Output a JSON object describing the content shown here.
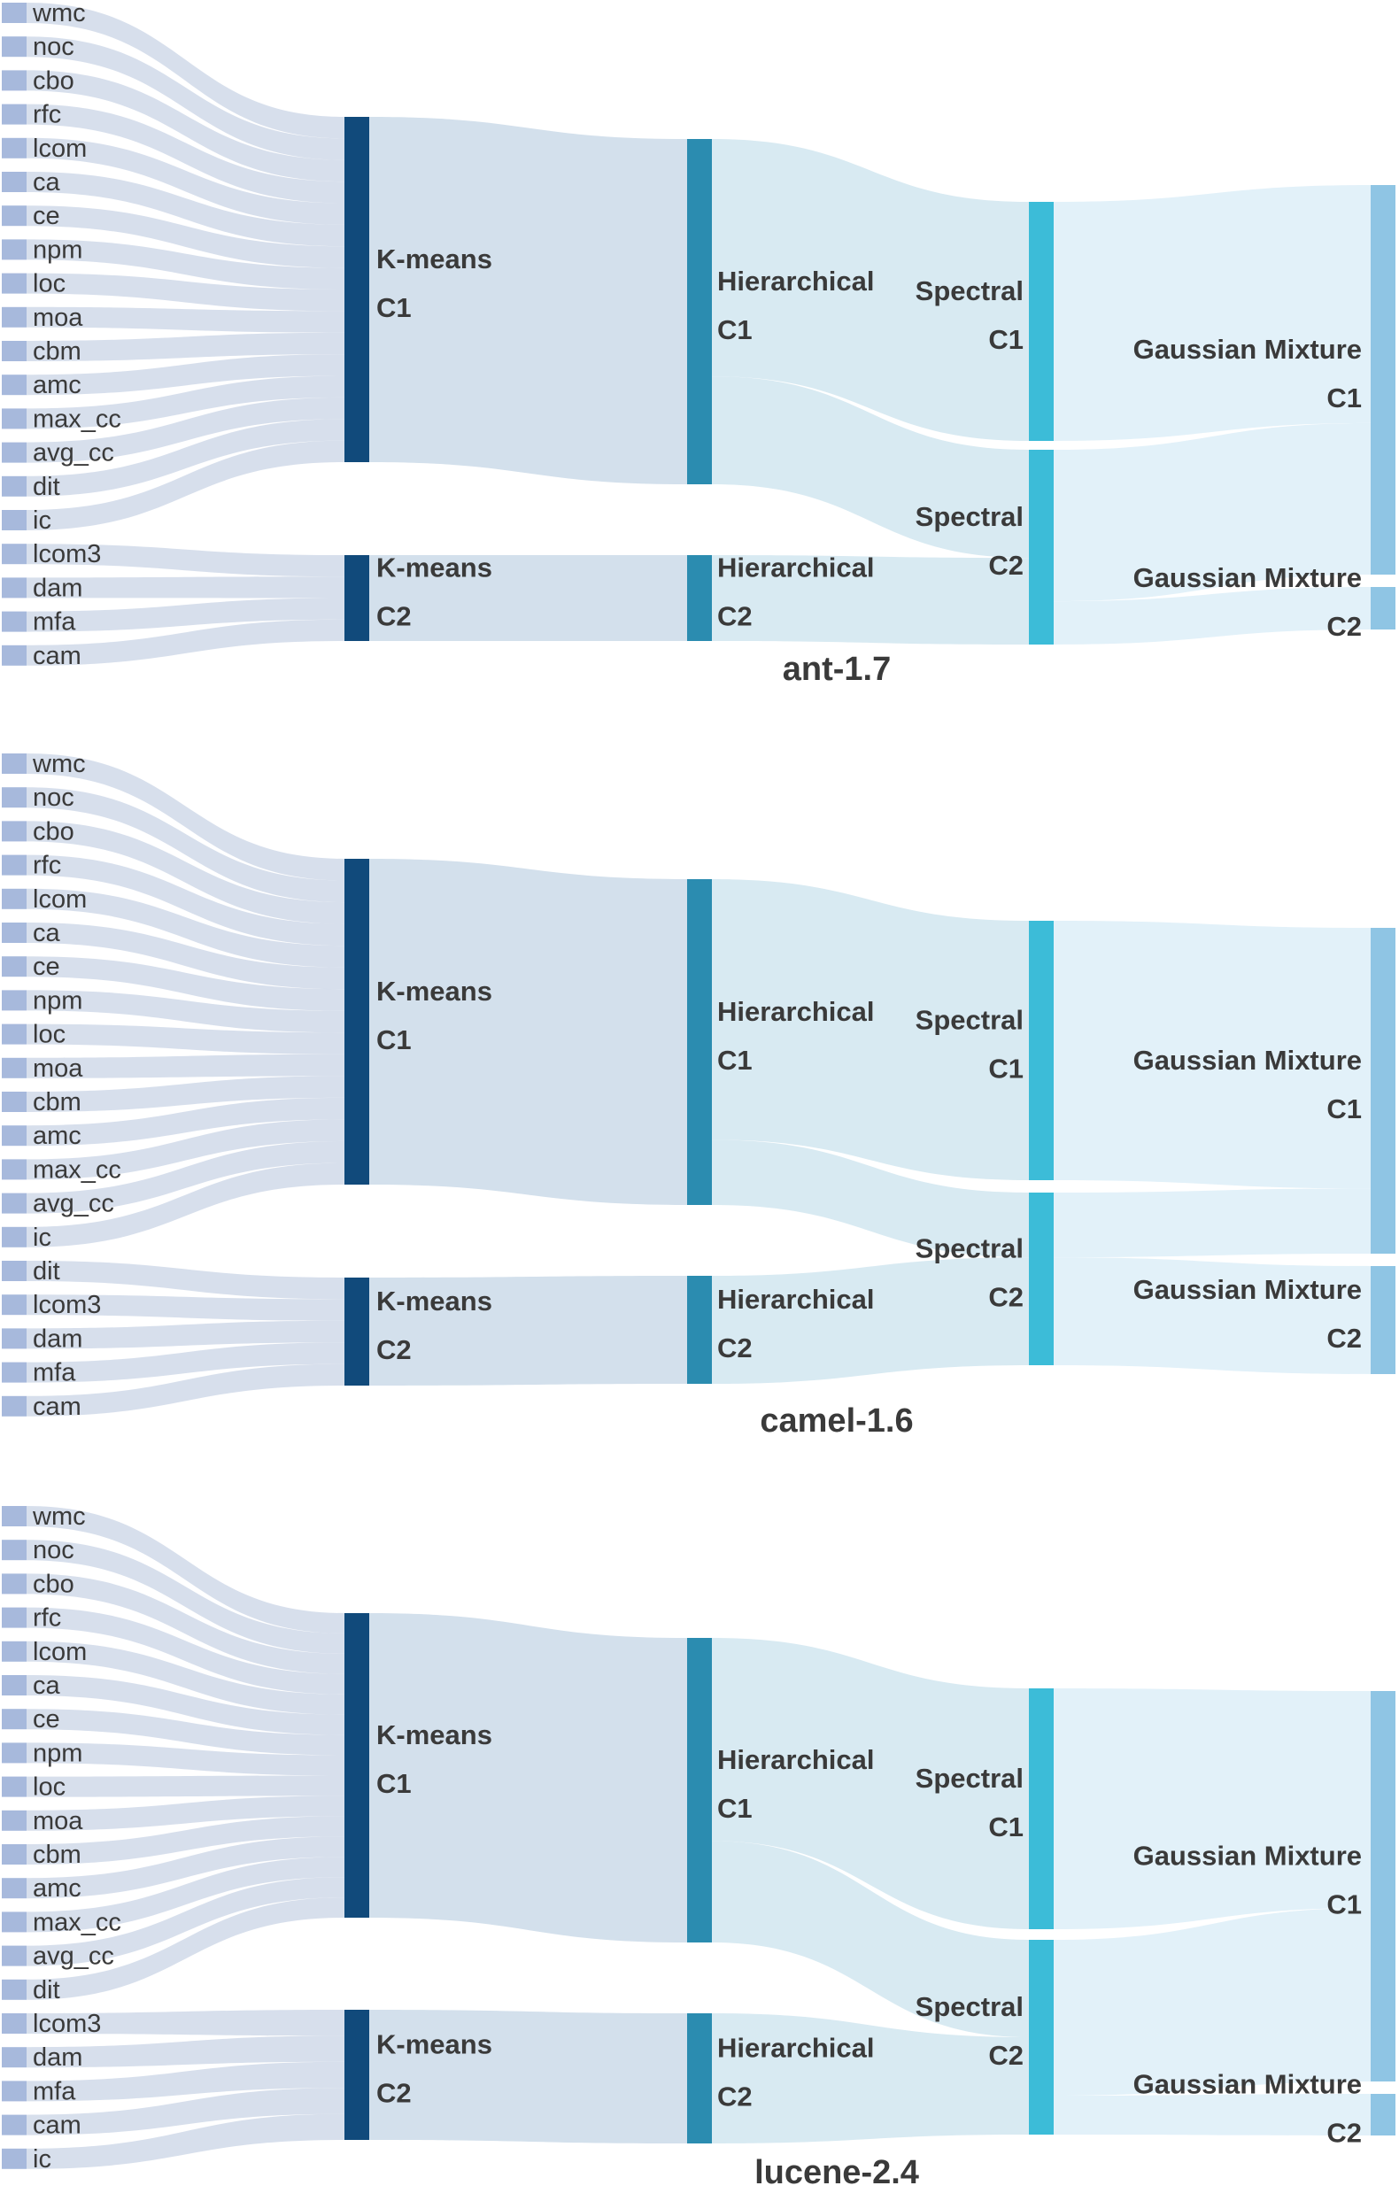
{
  "colors": {
    "metric": "#a7b9dc",
    "kmeans": "#114a7b",
    "hierarchical": "#2b8cb0",
    "spectral": "#3cbcd8",
    "gaussian": "#8fc5e4",
    "flow_metric": "#c9d4e6",
    "flow_kmeans": "#d3e0ec",
    "flow_hier": "#d8eaf2",
    "flow_spectral": "#e2f1f9"
  },
  "chart_data": [
    {
      "type": "sankey",
      "title": "ant-1.7",
      "metrics_c1": [
        "wmc",
        "noc",
        "cbo",
        "rfc",
        "lcom",
        "ca",
        "ce",
        "npm",
        "loc",
        "moa",
        "cbm",
        "amc",
        "max_cc",
        "avg_cc",
        "dit",
        "ic"
      ],
      "metrics_c2": [
        "lcom3",
        "dam",
        "mfa",
        "cam"
      ],
      "nodes": {
        "kmeans": [
          {
            "name": "K-means",
            "cluster": "C1",
            "value": 16
          },
          {
            "name": "K-means",
            "cluster": "C2",
            "value": 4
          }
        ],
        "hierarchical": [
          {
            "name": "Hierarchical",
            "cluster": "C1",
            "value": 16
          },
          {
            "name": "Hierarchical",
            "cluster": "C2",
            "value": 4
          }
        ],
        "spectral": [
          {
            "name": "Spectral",
            "cluster": "C1",
            "value": 11
          },
          {
            "name": "Spectral",
            "cluster": "C2",
            "value": 9
          }
        ],
        "gaussian": [
          {
            "name": "Gaussian Mixture",
            "cluster": "C1",
            "value": 18
          },
          {
            "name": "Gaussian Mixture",
            "cluster": "C2",
            "value": 2
          }
        ]
      },
      "links": {
        "hier_to_spectral": [
          [
            11,
            5
          ],
          [
            0,
            4
          ]
        ],
        "spectral_to_gaussian": [
          [
            11,
            0
          ],
          [
            7,
            2
          ]
        ]
      }
    },
    {
      "type": "sankey",
      "title": "camel-1.6",
      "metrics_c1": [
        "wmc",
        "noc",
        "cbo",
        "rfc",
        "lcom",
        "ca",
        "ce",
        "npm",
        "loc",
        "moa",
        "cbm",
        "amc",
        "max_cc",
        "avg_cc",
        "ic"
      ],
      "metrics_c2": [
        "dit",
        "lcom3",
        "dam",
        "mfa",
        "cam"
      ],
      "nodes": {
        "kmeans": [
          {
            "name": "K-means",
            "cluster": "C1",
            "value": 15
          },
          {
            "name": "K-means",
            "cluster": "C2",
            "value": 5
          }
        ],
        "hierarchical": [
          {
            "name": "Hierarchical",
            "cluster": "C1",
            "value": 15
          },
          {
            "name": "Hierarchical",
            "cluster": "C2",
            "value": 5
          }
        ],
        "spectral": [
          {
            "name": "Spectral",
            "cluster": "C1",
            "value": 12
          },
          {
            "name": "Spectral",
            "cluster": "C2",
            "value": 8
          }
        ],
        "gaussian": [
          {
            "name": "Gaussian Mixture",
            "cluster": "C1",
            "value": 15
          },
          {
            "name": "Gaussian Mixture",
            "cluster": "C2",
            "value": 5
          }
        ]
      },
      "links": {
        "hier_to_spectral": [
          [
            12,
            3
          ],
          [
            0,
            5
          ]
        ],
        "spectral_to_gaussian": [
          [
            12,
            0
          ],
          [
            3,
            5
          ]
        ]
      }
    },
    {
      "type": "sankey",
      "title": "lucene-2.4",
      "metrics_c1": [
        "wmc",
        "noc",
        "cbo",
        "rfc",
        "lcom",
        "ca",
        "ce",
        "npm",
        "loc",
        "moa",
        "cbm",
        "amc",
        "max_cc",
        "avg_cc",
        "dit"
      ],
      "metrics_c2": [
        "lcom3",
        "dam",
        "mfa",
        "cam",
        "ic"
      ],
      "nodes": {
        "kmeans": [
          {
            "name": "K-means",
            "cluster": "C1",
            "value": 15
          },
          {
            "name": "K-means",
            "cluster": "C2",
            "value": 5
          }
        ],
        "hierarchical": [
          {
            "name": "Hierarchical",
            "cluster": "C1",
            "value": 15
          },
          {
            "name": "Hierarchical",
            "cluster": "C2",
            "value": 5
          }
        ],
        "spectral": [
          {
            "name": "Spectral",
            "cluster": "C1",
            "value": 10
          },
          {
            "name": "Spectral",
            "cluster": "C2",
            "value": 10
          }
        ],
        "gaussian": [
          {
            "name": "Gaussian Mixture",
            "cluster": "C1",
            "value": 18
          },
          {
            "name": "Gaussian Mixture",
            "cluster": "C2",
            "value": 2
          }
        ]
      },
      "links": {
        "hier_to_spectral": [
          [
            10,
            5
          ],
          [
            0,
            5
          ]
        ],
        "spectral_to_gaussian": [
          [
            10,
            0
          ],
          [
            8,
            2
          ]
        ]
      }
    }
  ]
}
